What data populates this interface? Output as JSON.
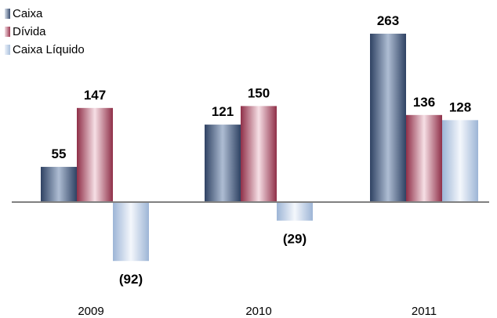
{
  "chart_data": {
    "type": "bar",
    "title": "",
    "xlabel": "",
    "ylabel": "",
    "categories": [
      "2009",
      "2010",
      "2011"
    ],
    "series": [
      {
        "name": "Caixa",
        "values": [
          55,
          121,
          263
        ],
        "labels": [
          "55",
          "121",
          "263"
        ]
      },
      {
        "name": "Dívida",
        "values": [
          147,
          150,
          136
        ],
        "labels": [
          "147",
          "150",
          "136"
        ]
      },
      {
        "name": "Caixa Líquido",
        "values": [
          -92,
          -29,
          128
        ],
        "labels": [
          "(92)",
          "(29)",
          "128"
        ]
      }
    ],
    "ylim": [
      -150,
      270
    ],
    "grid": false,
    "legend_position": "top-left",
    "colors": {
      "Caixa": "#4a5f82",
      "Dívida": "#b04c64",
      "Caixa Líquido": "#b9cde6",
      "axis": "#808080"
    }
  }
}
